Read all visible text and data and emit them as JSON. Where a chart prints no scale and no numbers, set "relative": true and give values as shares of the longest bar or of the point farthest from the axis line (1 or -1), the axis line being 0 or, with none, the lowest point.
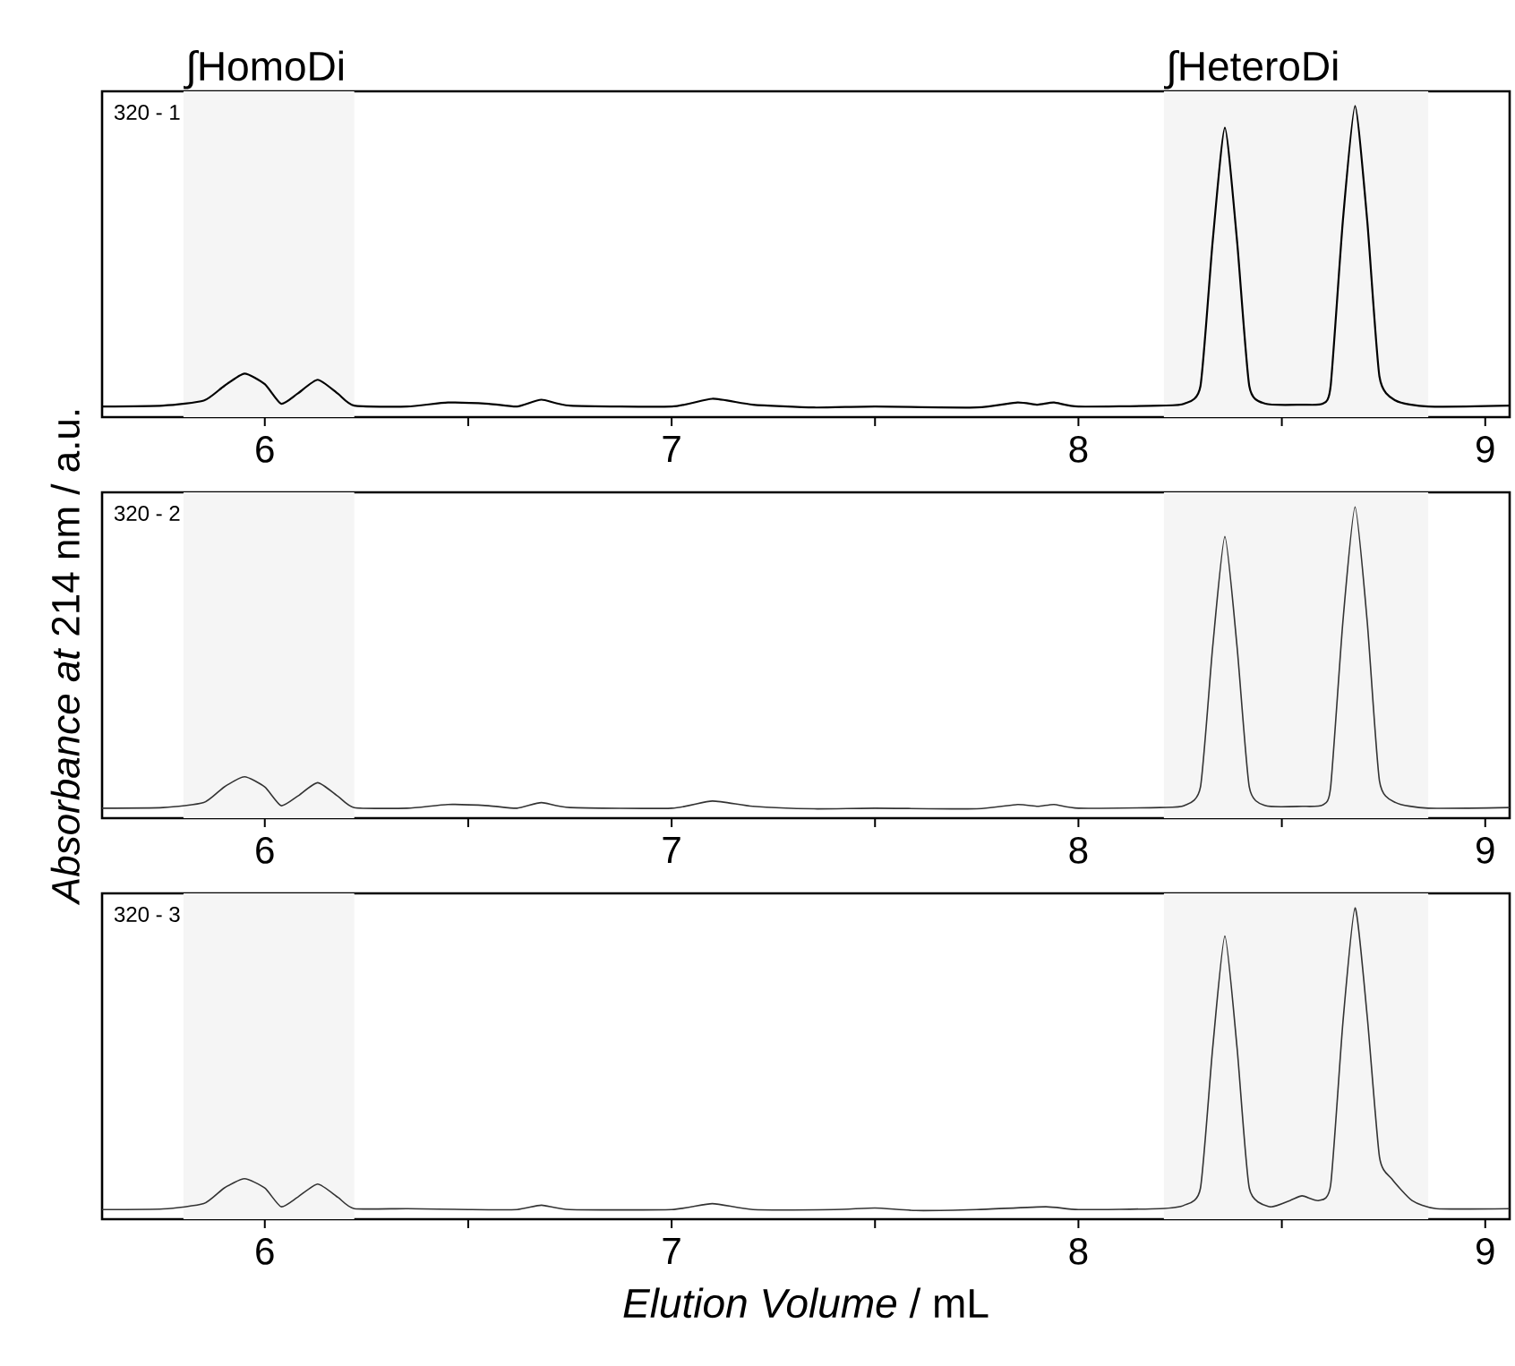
{
  "chart_data": [
    {
      "type": "line",
      "title": "320 - 1",
      "relative": true,
      "xlim": [
        5.6,
        9.06
      ],
      "xticks": [
        6,
        {
          "value": 6.5,
          "label": null
        },
        7,
        {
          "value": 7.5,
          "label": null
        },
        8,
        {
          "value": 8.5,
          "label": null
        },
        9
      ],
      "bands": [
        {
          "axis": "x",
          "from": 5.8,
          "to": 6.22,
          "label": "∫HomoDi",
          "color": "#f5f5f5"
        },
        {
          "axis": "x",
          "from": 8.21,
          "to": 8.86,
          "label": "∫HeteroDi",
          "color": "#f5f5f5"
        }
      ],
      "series": [
        {
          "color": "#000000",
          "x": [
            5.6,
            5.75,
            5.85,
            5.9,
            5.95,
            6.0,
            6.04,
            6.08,
            6.13,
            6.18,
            6.22,
            6.35,
            6.45,
            6.55,
            6.62,
            6.68,
            6.75,
            7.0,
            7.1,
            7.2,
            7.35,
            7.5,
            7.75,
            7.85,
            7.9,
            7.94,
            8.0,
            8.2,
            8.26,
            8.3,
            8.33,
            8.36,
            8.39,
            8.42,
            8.46,
            8.55,
            8.6,
            8.62,
            8.65,
            8.68,
            8.71,
            8.74,
            8.78,
            8.86,
            9.06
          ],
          "values": [
            0.034,
            0.037,
            0.053,
            0.1,
            0.14,
            0.106,
            0.043,
            0.075,
            0.12,
            0.075,
            0.037,
            0.034,
            0.047,
            0.043,
            0.034,
            0.056,
            0.037,
            0.034,
            0.059,
            0.04,
            0.031,
            0.034,
            0.031,
            0.047,
            0.04,
            0.047,
            0.034,
            0.037,
            0.043,
            0.1,
            0.565,
            0.93,
            0.565,
            0.1,
            0.043,
            0.04,
            0.043,
            0.1,
            0.63,
            1,
            0.63,
            0.13,
            0.053,
            0.034,
            0.037
          ]
        }
      ]
    },
    {
      "type": "line",
      "title": "320 - 2",
      "relative": true,
      "ylabel": "*Absorbance at* 214 nm / a.u.",
      "xlim": [
        5.6,
        9.06
      ],
      "xticks": [
        6,
        {
          "value": 6.5,
          "label": null
        },
        7,
        {
          "value": 7.5,
          "label": null
        },
        8,
        {
          "value": 8.5,
          "label": null
        },
        9
      ],
      "bands": [
        {
          "axis": "x",
          "from": 5.8,
          "to": 6.22,
          "color": "#f5f5f5"
        },
        {
          "axis": "x",
          "from": 8.21,
          "to": 8.86,
          "color": "#f5f5f5"
        }
      ],
      "series": [
        {
          "color": "#333333",
          "x": [
            5.6,
            5.75,
            5.85,
            5.9,
            5.95,
            6.0,
            6.04,
            6.08,
            6.13,
            6.18,
            6.22,
            6.35,
            6.45,
            6.55,
            6.62,
            6.68,
            6.75,
            7.0,
            7.1,
            7.2,
            7.35,
            7.5,
            7.75,
            7.85,
            7.9,
            7.94,
            8.0,
            8.2,
            8.26,
            8.3,
            8.33,
            8.36,
            8.39,
            8.42,
            8.46,
            8.55,
            8.6,
            8.62,
            8.65,
            8.68,
            8.71,
            8.74,
            8.78,
            8.86,
            9.06
          ],
          "values": [
            0.032,
            0.034,
            0.05,
            0.1,
            0.133,
            0.1,
            0.04,
            0.07,
            0.114,
            0.07,
            0.034,
            0.032,
            0.044,
            0.04,
            0.032,
            0.05,
            0.034,
            0.032,
            0.055,
            0.038,
            0.03,
            0.032,
            0.03,
            0.044,
            0.038,
            0.044,
            0.032,
            0.034,
            0.04,
            0.1,
            0.55,
            0.905,
            0.55,
            0.1,
            0.04,
            0.038,
            0.042,
            0.1,
            0.63,
            1,
            0.63,
            0.12,
            0.05,
            0.032,
            0.034
          ]
        }
      ]
    },
    {
      "type": "line",
      "title": "320 - 3",
      "relative": true,
      "xlabel": "*Elution Volume* / mL",
      "xlim": [
        5.6,
        9.06
      ],
      "xticks": [
        6,
        {
          "value": 6.5,
          "label": null
        },
        7,
        {
          "value": 7.5,
          "label": null
        },
        8,
        {
          "value": 8.5,
          "label": null
        },
        9
      ],
      "bands": [
        {
          "axis": "x",
          "from": 5.8,
          "to": 6.22,
          "color": "#f5f5f5"
        },
        {
          "axis": "x",
          "from": 8.21,
          "to": 8.86,
          "color": "#f5f5f5"
        }
      ],
      "series": [
        {
          "color": "#333333",
          "x": [
            5.6,
            5.75,
            5.85,
            5.9,
            5.95,
            6.0,
            6.04,
            6.08,
            6.13,
            6.18,
            6.22,
            6.35,
            6.5,
            6.62,
            6.68,
            6.75,
            7.0,
            7.1,
            7.2,
            7.4,
            7.5,
            7.6,
            7.75,
            7.92,
            8.0,
            8.2,
            8.26,
            8.3,
            8.33,
            8.36,
            8.39,
            8.42,
            8.47,
            8.52,
            8.55,
            8.59,
            8.62,
            8.65,
            8.68,
            8.71,
            8.74,
            8.77,
            8.82,
            8.88,
            9.06
          ],
          "values": [
            0.031,
            0.033,
            0.05,
            0.1,
            0.13,
            0.1,
            0.04,
            0.07,
            0.113,
            0.07,
            0.034,
            0.034,
            0.031,
            0.031,
            0.045,
            0.031,
            0.031,
            0.05,
            0.031,
            0.031,
            0.036,
            0.028,
            0.031,
            0.04,
            0.031,
            0.034,
            0.045,
            0.1,
            0.55,
            0.91,
            0.55,
            0.1,
            0.04,
            0.06,
            0.075,
            0.06,
            0.11,
            0.63,
            1,
            0.65,
            0.2,
            0.13,
            0.06,
            0.034,
            0.034
          ]
        }
      ]
    }
  ]
}
